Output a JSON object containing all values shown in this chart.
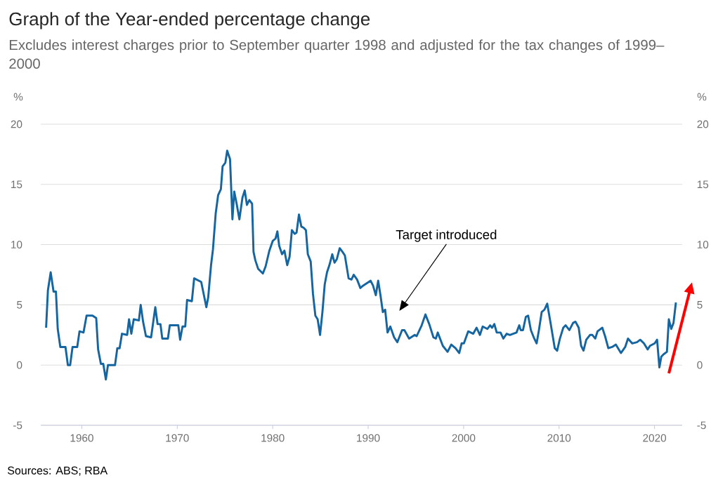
{
  "chart_data": {
    "type": "line",
    "title": "Graph of the Year-ended percentage change",
    "subtitle": "Excludes interest charges prior to September quarter 1998 and adjusted for the tax changes of 1999–2000",
    "ylabel": "%",
    "y2label": "%",
    "annotations": [
      "Target introduced",
      "Sources: ABS; RBA"
    ],
    "x": [
      1956.26,
      1956.45,
      1956.74,
      1957.04,
      1957.29,
      1957.48,
      1957.75,
      1958.29,
      1958.54,
      1958.78,
      1959.03,
      1959.52,
      1959.76,
      1960.18,
      1960.5,
      1961.12,
      1961.51,
      1961.71,
      1962.0,
      1962.25,
      1962.52,
      1962.74,
      1963.48,
      1963.72,
      1963.96,
      1964.21,
      1964.75,
      1964.95,
      1965.19,
      1965.44,
      1965.98,
      1966.17,
      1966.42,
      1966.72,
      1967.26,
      1967.7,
      1967.94,
      1968.24,
      1968.43,
      1969.02,
      1969.22,
      1970.11,
      1970.3,
      1970.55,
      1970.84,
      1971.03,
      1971.53,
      1971.77,
      1972.51,
      1973.05,
      1973.24,
      1973.54,
      1973.74,
      1974.03,
      1974.28,
      1974.57,
      1974.75,
      1975.04,
      1975.23,
      1975.53,
      1975.78,
      1975.97,
      1976.22,
      1976.51,
      1976.83,
      1977.07,
      1977.3,
      1977.55,
      1977.84,
      1977.99,
      1978.18,
      1978.47,
      1978.97,
      1979.26,
      1979.65,
      1980.0,
      1980.29,
      1980.49,
      1980.68,
      1980.98,
      1981.23,
      1981.52,
      1981.77,
      1982.01,
      1982.3,
      1982.5,
      1982.75,
      1983.0,
      1983.24,
      1983.48,
      1983.68,
      1983.98,
      1984.22,
      1984.47,
      1984.71,
      1984.96,
      1985.21,
      1985.45,
      1985.69,
      1985.94,
      1986.24,
      1986.48,
      1986.72,
      1987.02,
      1987.31,
      1987.56,
      1987.95,
      1988.25,
      1988.49,
      1988.84,
      1989.18,
      1989.48,
      1990.26,
      1990.51,
      1990.8,
      1991.05,
      1991.29,
      1991.54,
      1991.78,
      1992.03,
      1992.32,
      1992.72,
      1993.06,
      1993.55,
      1993.8,
      1994.29,
      1994.88,
      1995.08,
      1995.61,
      1996.0,
      1996.4,
      1996.84,
      1997.09,
      1997.29,
      1997.82,
      1998.32,
      1998.71,
      1999.15,
      1999.54,
      1999.79,
      2000.03,
      2000.48,
      2001.01,
      2001.36,
      2001.71,
      2002.0,
      2002.49,
      2002.78,
      2002.98,
      2003.22,
      2003.47,
      2003.87,
      2004.16,
      2004.51,
      2004.85,
      2005.19,
      2005.54,
      2005.83,
      2005.98,
      2006.22,
      2006.52,
      2006.76,
      2007.05,
      2007.4,
      2007.65,
      2007.89,
      2008.18,
      2008.47,
      2008.76,
      2009.11,
      2009.55,
      2009.8,
      2010.09,
      2010.44,
      2010.69,
      2011.08,
      2011.47,
      2011.72,
      2012.06,
      2012.31,
      2012.56,
      2012.85,
      2013.24,
      2013.49,
      2013.79,
      2014.03,
      2014.53,
      2014.82,
      2015.16,
      2015.56,
      2015.95,
      2016.48,
      2016.93,
      2017.22,
      2017.66,
      2018.16,
      2018.5,
      2018.89,
      2019.28,
      2019.53,
      2020.02,
      2020.27,
      2020.51,
      2020.71,
      2020.96,
      2021.3,
      2021.5,
      2021.75,
      2021.99,
      2022.24
    ],
    "series": [
      {
        "color": "#1565a0",
        "values": [
          3.1,
          6.2,
          7.7,
          6.1,
          6.1,
          3.0,
          1.5,
          1.5,
          0,
          0,
          1.5,
          1.5,
          2.8,
          2.7,
          4.1,
          4.1,
          3.9,
          1.3,
          0.1,
          0.1,
          -1.2,
          0,
          0,
          1.4,
          1.4,
          2.6,
          2.5,
          3.8,
          2.6,
          3.8,
          3.7,
          5.0,
          3.6,
          2.4,
          2.3,
          4.8,
          3.4,
          3.4,
          2.2,
          2.2,
          3.3,
          3.3,
          2.1,
          3.2,
          3.2,
          5.4,
          5.3,
          7.2,
          6.9,
          4.8,
          5.6,
          8.3,
          9.6,
          12.6,
          14.1,
          14.6,
          16.5,
          16.8,
          17.8,
          17.1,
          12.1,
          14.4,
          13.4,
          12.1,
          13.9,
          14.5,
          13.3,
          13.7,
          13.4,
          9.4,
          8.7,
          8.0,
          7.6,
          8.2,
          9.5,
          10.3,
          10.5,
          11.1,
          9.9,
          9.2,
          9.5,
          8.3,
          9.0,
          11.2,
          10.9,
          11.0,
          12.5,
          11.5,
          11.4,
          11.2,
          9.2,
          8.6,
          5.9,
          4.1,
          3.8,
          2.5,
          4.4,
          6.7,
          7.7,
          8.3,
          9.2,
          8.5,
          8.8,
          9.7,
          9.4,
          9.1,
          7.2,
          7.1,
          7.5,
          7.1,
          6.4,
          6.6,
          7.0,
          6.6,
          5.8,
          7.0,
          5.8,
          4.4,
          4.6,
          2.7,
          3.2,
          2.3,
          1.9,
          2.9,
          2.9,
          2.2,
          2.5,
          2.4,
          3.3,
          4.2,
          3.4,
          2.3,
          2.2,
          2.7,
          1.6,
          1.1,
          1.7,
          1.4,
          1.0,
          1.8,
          1.8,
          2.8,
          2.6,
          3.1,
          2.5,
          3.2,
          3.0,
          3.3,
          3.1,
          3.4,
          2.7,
          2.7,
          2.2,
          2.6,
          2.5,
          2.6,
          2.7,
          3.3,
          2.9,
          2.9,
          4.0,
          4.1,
          2.9,
          2.2,
          1.8,
          2.9,
          4.4,
          4.6,
          5.1,
          3.5,
          1.4,
          1.2,
          2.2,
          3.1,
          3.3,
          2.9,
          3.5,
          3.6,
          3.1,
          1.6,
          1.2,
          2.1,
          2.5,
          2.5,
          2.2,
          2.8,
          3.1,
          2.4,
          1.4,
          1.5,
          1.7,
          1.0,
          1.5,
          2.2,
          1.8,
          1.9,
          2.1,
          1.8,
          1.3,
          1.6,
          1.8,
          2.1,
          -0.2,
          0.7,
          0.9,
          1.1,
          3.8,
          3.0,
          3.5,
          5.2
        ]
      }
    ],
    "xlim": [
      1955.7,
      2022.9
    ],
    "xticks": [
      1960,
      1970,
      1980,
      1990,
      2000,
      2010,
      2020
    ],
    "ylim": [
      -5,
      20
    ],
    "yticks": [
      -5,
      0,
      5,
      10,
      15,
      20
    ],
    "y2lim": [
      -5,
      20
    ],
    "y2ticks": [
      -5,
      0,
      5,
      10,
      15,
      20
    ],
    "grid": "y"
  }
}
